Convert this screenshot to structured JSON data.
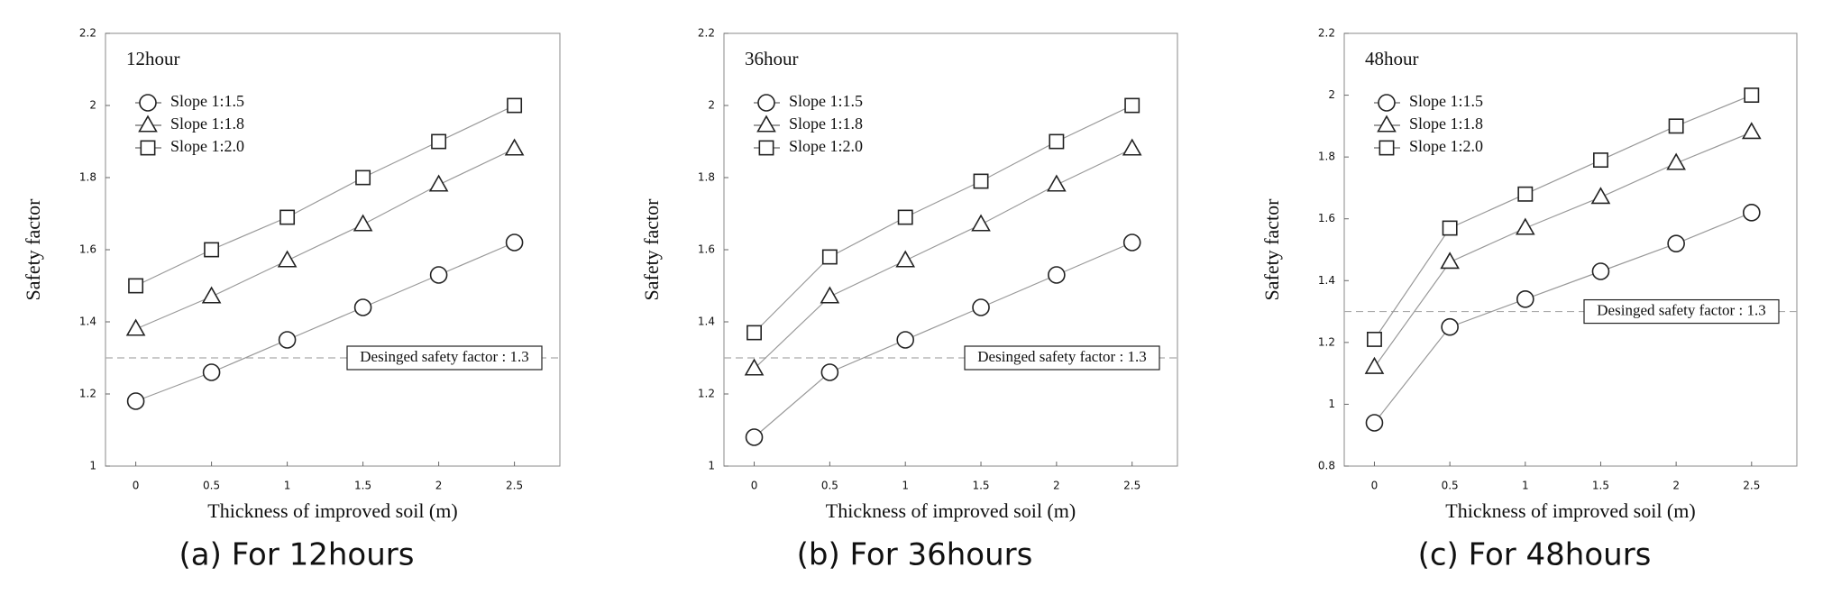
{
  "chart_data": [
    {
      "type": "line",
      "title": "12hour",
      "caption": "(a) For 12hours",
      "x_label": "Thickness of improved soil  (m)",
      "y_label": "Safety factor",
      "x": [
        0,
        0.5,
        1,
        1.5,
        2,
        2.5
      ],
      "xlim": [
        -0.2,
        2.8
      ],
      "xticks": [
        0,
        0.5,
        1,
        1.5,
        2,
        2.5
      ],
      "ylim": [
        1,
        2.2
      ],
      "yticks": [
        1,
        1.2,
        1.4,
        1.6,
        1.8,
        2,
        2.2
      ],
      "legend": "upper left",
      "reference_line": {
        "value": 1.3,
        "label": "Desinged safety factor : 1.3"
      },
      "series": [
        {
          "name": "Slope 1:1.5",
          "marker": "circle",
          "color": "#222222",
          "values": [
            1.18,
            1.26,
            1.35,
            1.44,
            1.53,
            1.62
          ]
        },
        {
          "name": "Slope 1:1.8",
          "marker": "triangle",
          "color": "#222222",
          "values": [
            1.38,
            1.47,
            1.57,
            1.67,
            1.78,
            1.88
          ]
        },
        {
          "name": "Slope 1:2.0",
          "marker": "square",
          "color": "#222222",
          "values": [
            1.5,
            1.6,
            1.69,
            1.8,
            1.9,
            2.0
          ]
        }
      ]
    },
    {
      "type": "line",
      "title": "36hour",
      "caption": "(b) For 36hours",
      "x_label": "Thickness of improved soil  (m)",
      "y_label": "Safety factor",
      "x": [
        0,
        0.5,
        1,
        1.5,
        2,
        2.5
      ],
      "xlim": [
        -0.2,
        2.8
      ],
      "xticks": [
        0,
        0.5,
        1,
        1.5,
        2,
        2.5
      ],
      "ylim": [
        1,
        2.2
      ],
      "yticks": [
        1,
        1.2,
        1.4,
        1.6,
        1.8,
        2,
        2.2
      ],
      "legend": "upper left",
      "reference_line": {
        "value": 1.3,
        "label": "Desinged safety factor : 1.3"
      },
      "series": [
        {
          "name": "Slope 1:1.5",
          "marker": "circle",
          "color": "#222222",
          "values": [
            1.08,
            1.26,
            1.35,
            1.44,
            1.53,
            1.62
          ]
        },
        {
          "name": "Slope 1:1.8",
          "marker": "triangle",
          "color": "#222222",
          "values": [
            1.27,
            1.47,
            1.57,
            1.67,
            1.78,
            1.88
          ]
        },
        {
          "name": "Slope 1:2.0",
          "marker": "square",
          "color": "#222222",
          "values": [
            1.37,
            1.58,
            1.69,
            1.79,
            1.9,
            2.0
          ]
        }
      ]
    },
    {
      "type": "line",
      "title": "48hour",
      "caption": "(c) For 48hours",
      "x_label": "Thickness of improved soil  (m)",
      "y_label": "Safety factor",
      "x": [
        0,
        0.5,
        1,
        1.5,
        2,
        2.5
      ],
      "xlim": [
        -0.2,
        2.8
      ],
      "xticks": [
        0,
        0.5,
        1,
        1.5,
        2,
        2.5
      ],
      "ylim": [
        0.8,
        2.2
      ],
      "yticks": [
        0.8,
        1,
        1.2,
        1.4,
        1.6,
        1.8,
        2,
        2.2
      ],
      "legend": "upper left",
      "reference_line": {
        "value": 1.3,
        "label": "Desinged safety factor : 1.3"
      },
      "series": [
        {
          "name": "Slope 1:1.5",
          "marker": "circle",
          "color": "#222222",
          "values": [
            0.94,
            1.25,
            1.34,
            1.43,
            1.52,
            1.62
          ]
        },
        {
          "name": "Slope 1:1.8",
          "marker": "triangle",
          "color": "#222222",
          "values": [
            1.12,
            1.46,
            1.57,
            1.67,
            1.78,
            1.88
          ]
        },
        {
          "name": "Slope 1:2.0",
          "marker": "square",
          "color": "#222222",
          "values": [
            1.21,
            1.57,
            1.68,
            1.79,
            1.9,
            2.0
          ]
        }
      ]
    }
  ]
}
